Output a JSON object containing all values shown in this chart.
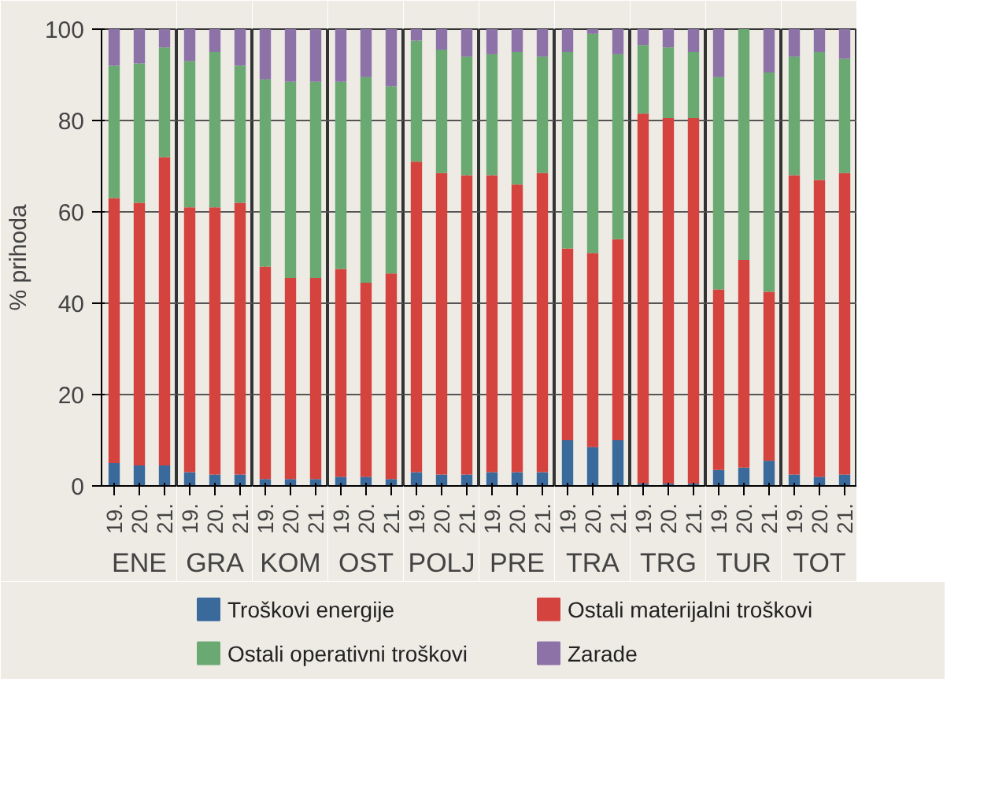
{
  "chart_data": [
    {
      "type": "bar",
      "stacked": true,
      "ylabel": "% prihoda",
      "xlabel": "ENE",
      "categories": [
        "19.",
        "20.",
        "21."
      ],
      "ylim": [
        0,
        100
      ],
      "yticks": [
        0,
        20,
        40,
        60,
        80,
        100
      ],
      "grid": true,
      "legend": "bottom",
      "series": [
        {
          "name": "Troškovi energije",
          "color": "#3a6a9c",
          "values": [
            5,
            4.5,
            4.5
          ]
        },
        {
          "name": "Ostali materijalni troškovi",
          "color": "#d5433f",
          "values": [
            58,
            57.5,
            67.5
          ]
        },
        {
          "name": "Ostali operativni troškovi",
          "color": "#6aaa72",
          "values": [
            29,
            30.5,
            24
          ]
        },
        {
          "name": "Zarade",
          "color": "#8d72a8",
          "values": [
            8,
            7.5,
            4
          ]
        }
      ]
    },
    {
      "type": "bar",
      "stacked": true,
      "xlabel": "GRA",
      "categories": [
        "19.",
        "20.",
        "21."
      ],
      "ylim": [
        0,
        100
      ],
      "yticks": [
        0,
        20,
        40,
        60,
        80,
        100
      ],
      "grid": true,
      "tick_labels": "x",
      "series": [
        {
          "color": "#3a6a9c",
          "values": [
            3,
            2.5,
            2.5
          ]
        },
        {
          "color": "#d5433f",
          "values": [
            58,
            58.5,
            59.5
          ]
        },
        {
          "color": "#6aaa72",
          "values": [
            32,
            34,
            30
          ]
        },
        {
          "color": "#8d72a8",
          "values": [
            7,
            5,
            8
          ]
        }
      ]
    },
    {
      "type": "bar",
      "stacked": true,
      "xlabel": "KOM",
      "categories": [
        "19.",
        "20.",
        "21."
      ],
      "ylim": [
        0,
        100
      ],
      "yticks": [
        0,
        20,
        40,
        60,
        80,
        100
      ],
      "grid": true,
      "tick_labels": "x",
      "series": [
        {
          "color": "#3a6a9c",
          "values": [
            1.5,
            1.5,
            1.5
          ]
        },
        {
          "color": "#d5433f",
          "values": [
            46.5,
            44,
            44
          ]
        },
        {
          "color": "#6aaa72",
          "values": [
            41,
            43,
            43
          ]
        },
        {
          "color": "#8d72a8",
          "values": [
            11,
            11.5,
            11.5
          ]
        }
      ]
    },
    {
      "type": "bar",
      "stacked": true,
      "xlabel": "OST",
      "categories": [
        "19.",
        "20.",
        "21."
      ],
      "ylim": [
        0,
        100
      ],
      "yticks": [
        0,
        20,
        40,
        60,
        80,
        100
      ],
      "grid": true,
      "tick_labels": "x",
      "series": [
        {
          "color": "#3a6a9c",
          "values": [
            2,
            2,
            1.5
          ]
        },
        {
          "color": "#d5433f",
          "values": [
            45.5,
            42.5,
            45
          ]
        },
        {
          "color": "#6aaa72",
          "values": [
            41,
            45,
            41
          ]
        },
        {
          "color": "#8d72a8",
          "values": [
            11.5,
            10.5,
            12.5
          ]
        }
      ]
    },
    {
      "type": "bar",
      "stacked": true,
      "xlabel": "POLJ",
      "categories": [
        "19.",
        "20.",
        "21."
      ],
      "ylim": [
        0,
        100
      ],
      "yticks": [
        0,
        20,
        40,
        60,
        80,
        100
      ],
      "grid": true,
      "tick_labels": "x",
      "series": [
        {
          "color": "#3a6a9c",
          "values": [
            3,
            2.5,
            2.5
          ]
        },
        {
          "color": "#d5433f",
          "values": [
            68,
            66,
            65.5
          ]
        },
        {
          "color": "#6aaa72",
          "values": [
            26.5,
            27,
            26
          ]
        },
        {
          "color": "#8d72a8",
          "values": [
            2.5,
            4.5,
            6
          ]
        }
      ]
    },
    {
      "type": "bar",
      "stacked": true,
      "xlabel": "PRE",
      "categories": [
        "19.",
        "20.",
        "21."
      ],
      "ylim": [
        0,
        100
      ],
      "yticks": [
        0,
        20,
        40,
        60,
        80,
        100
      ],
      "grid": true,
      "tick_labels": "x",
      "series": [
        {
          "color": "#3a6a9c",
          "values": [
            3,
            3,
            3
          ]
        },
        {
          "color": "#d5433f",
          "values": [
            65,
            63,
            65.5
          ]
        },
        {
          "color": "#6aaa72",
          "values": [
            26.5,
            29,
            25.5
          ]
        },
        {
          "color": "#8d72a8",
          "values": [
            5.5,
            5,
            6
          ]
        }
      ]
    },
    {
      "type": "bar",
      "stacked": true,
      "xlabel": "TRA",
      "categories": [
        "19.",
        "20.",
        "21."
      ],
      "ylim": [
        0,
        100
      ],
      "yticks": [
        0,
        20,
        40,
        60,
        80,
        100
      ],
      "grid": true,
      "tick_labels": "x",
      "series": [
        {
          "color": "#3a6a9c",
          "values": [
            10,
            8.5,
            10
          ]
        },
        {
          "color": "#d5433f",
          "values": [
            42,
            42.5,
            44
          ]
        },
        {
          "color": "#6aaa72",
          "values": [
            43,
            48,
            40.5
          ]
        },
        {
          "color": "#8d72a8",
          "values": [
            5,
            1,
            5.5
          ]
        }
      ]
    },
    {
      "type": "bar",
      "stacked": true,
      "xlabel": "TRG",
      "categories": [
        "19.",
        "20.",
        "21."
      ],
      "ylim": [
        0,
        100
      ],
      "yticks": [
        0,
        20,
        40,
        60,
        80,
        100
      ],
      "grid": true,
      "tick_labels": "x",
      "series": [
        {
          "color": "#3a6a9c",
          "values": [
            0.5,
            0.5,
            0.5
          ]
        },
        {
          "color": "#d5433f",
          "values": [
            81,
            80,
            80
          ]
        },
        {
          "color": "#6aaa72",
          "values": [
            15,
            15.5,
            14.5
          ]
        },
        {
          "color": "#8d72a8",
          "values": [
            3.5,
            4,
            5
          ]
        }
      ]
    },
    {
      "type": "bar",
      "stacked": true,
      "xlabel": "TUR",
      "categories": [
        "19.",
        "20.",
        "21."
      ],
      "ylim": [
        0,
        100
      ],
      "yticks": [
        0,
        20,
        40,
        60,
        80,
        100
      ],
      "grid": true,
      "tick_labels": "x",
      "series": [
        {
          "color": "#3a6a9c",
          "values": [
            3.5,
            4,
            5.5
          ]
        },
        {
          "color": "#d5433f",
          "values": [
            39.5,
            45.5,
            37
          ]
        },
        {
          "color": "#6aaa72",
          "values": [
            46.5,
            50.5,
            48
          ]
        },
        {
          "color": "#8d72a8",
          "values": [
            10.5,
            0,
            9.5
          ]
        }
      ]
    },
    {
      "type": "bar",
      "stacked": true,
      "xlabel": "TOT",
      "categories": [
        "19.",
        "20.",
        "21."
      ],
      "ylim": [
        0,
        100
      ],
      "yticks": [
        0,
        20,
        40,
        60,
        80,
        100
      ],
      "grid": true,
      "tick_labels": "x",
      "series": [
        {
          "color": "#3a6a9c",
          "values": [
            2.5,
            2,
            2.5
          ]
        },
        {
          "color": "#d5433f",
          "values": [
            65.5,
            65,
            66
          ]
        },
        {
          "color": "#6aaa72",
          "values": [
            26,
            28,
            25
          ]
        },
        {
          "color": "#8d72a8",
          "values": [
            6,
            5,
            6.5
          ]
        }
      ]
    }
  ]
}
